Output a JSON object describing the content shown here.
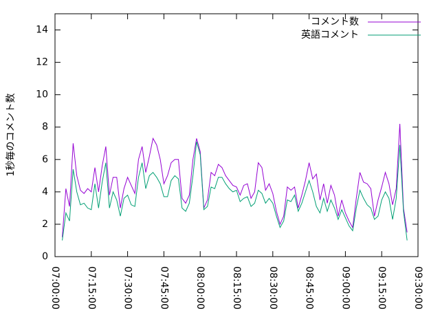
{
  "chart_data": {
    "type": "line",
    "ylabel": "1秒毎のコメント数",
    "x": [
      "07:03:00",
      "07:04:30",
      "07:06:00",
      "07:07:30",
      "07:09:00",
      "07:10:30",
      "07:12:00",
      "07:13:30",
      "07:15:00",
      "07:16:30",
      "07:18:00",
      "07:19:30",
      "07:21:00",
      "07:22:30",
      "07:24:00",
      "07:25:30",
      "07:27:00",
      "07:28:30",
      "07:30:00",
      "07:31:30",
      "07:33:00",
      "07:34:30",
      "07:36:00",
      "07:37:30",
      "07:39:00",
      "07:40:30",
      "07:42:00",
      "07:43:30",
      "07:45:00",
      "07:46:30",
      "07:48:00",
      "07:49:30",
      "07:51:00",
      "07:52:30",
      "07:54:00",
      "07:55:30",
      "07:57:00",
      "07:58:30",
      "08:00:00",
      "08:01:30",
      "08:03:00",
      "08:04:30",
      "08:06:00",
      "08:07:30",
      "08:09:00",
      "08:10:30",
      "08:12:00",
      "08:13:30",
      "08:15:00",
      "08:16:30",
      "08:18:00",
      "08:19:30",
      "08:21:00",
      "08:22:30",
      "08:24:00",
      "08:25:30",
      "08:27:00",
      "08:28:30",
      "08:30:00",
      "08:31:30",
      "08:33:00",
      "08:34:30",
      "08:36:00",
      "08:37:30",
      "08:39:00",
      "08:40:30",
      "08:42:00",
      "08:43:30",
      "08:45:00",
      "08:46:30",
      "08:48:00",
      "08:49:30",
      "08:51:00",
      "08:52:30",
      "08:54:00",
      "08:55:30",
      "08:57:00",
      "08:58:30",
      "09:00:00",
      "09:01:30",
      "09:03:00",
      "09:04:30",
      "09:06:00",
      "09:07:30",
      "09:09:00",
      "09:10:30",
      "09:12:00",
      "09:13:30",
      "09:15:00",
      "09:16:30",
      "09:18:00",
      "09:19:30",
      "09:21:00",
      "09:22:30",
      "09:24:00",
      "09:25:30"
    ],
    "series": [
      {
        "name": "コメント数",
        "color": "#9400d3",
        "values": [
          1.2,
          4.2,
          3.1,
          7.0,
          5.0,
          4.1,
          3.9,
          4.2,
          4.0,
          5.5,
          4.0,
          5.6,
          6.8,
          3.8,
          4.9,
          4.9,
          3.0,
          4.2,
          4.9,
          4.4,
          3.9,
          6.0,
          6.8,
          5.2,
          6.2,
          7.3,
          6.9,
          6.0,
          4.5,
          5.0,
          5.8,
          6.0,
          6.0,
          3.6,
          3.3,
          3.8,
          6.0,
          7.3,
          6.5,
          3.0,
          3.5,
          5.2,
          5.0,
          5.7,
          5.5,
          5.0,
          4.7,
          4.4,
          4.3,
          3.8,
          4.4,
          4.5,
          3.6,
          4.0,
          5.8,
          5.5,
          4.1,
          4.5,
          3.9,
          2.8,
          2.0,
          2.5,
          4.3,
          4.1,
          4.3,
          3.0,
          3.8,
          4.7,
          5.8,
          4.8,
          5.1,
          3.5,
          4.5,
          3.3,
          4.4,
          3.8,
          2.5,
          3.5,
          2.7,
          2.2,
          1.8,
          3.6,
          5.2,
          4.6,
          4.5,
          4.2,
          2.5,
          3.5,
          4.3,
          5.2,
          4.5,
          3.2,
          4.2,
          8.2,
          3.0,
          1.5
        ]
      },
      {
        "name": "英語コメント",
        "color": "#009e73",
        "values": [
          1.0,
          2.7,
          2.2,
          5.4,
          4.0,
          3.2,
          3.3,
          3.0,
          2.9,
          4.5,
          3.0,
          4.6,
          5.8,
          3.0,
          4.0,
          3.5,
          2.5,
          3.6,
          3.8,
          3.2,
          3.1,
          4.9,
          5.8,
          4.2,
          5.0,
          5.2,
          4.9,
          4.5,
          3.7,
          3.7,
          4.7,
          5.0,
          4.8,
          3.0,
          2.8,
          3.3,
          5.0,
          7.1,
          6.3,
          2.9,
          3.1,
          4.3,
          4.2,
          4.9,
          4.9,
          4.5,
          4.2,
          4.0,
          4.1,
          3.4,
          3.6,
          3.7,
          3.1,
          3.3,
          4.1,
          3.9,
          3.3,
          3.6,
          3.3,
          2.5,
          1.8,
          2.2,
          3.5,
          3.4,
          3.8,
          2.8,
          3.3,
          4.0,
          4.7,
          4.0,
          3.1,
          2.7,
          3.6,
          2.8,
          3.5,
          3.0,
          2.3,
          2.9,
          2.4,
          1.9,
          1.6,
          3.0,
          4.1,
          3.6,
          3.2,
          3.0,
          2.3,
          2.5,
          3.5,
          4.0,
          3.6,
          2.3,
          3.6,
          6.9,
          2.8,
          1.0
        ]
      }
    ],
    "xlim": [
      "07:00:00",
      "09:30:00"
    ],
    "xticks": [
      "07:00:00",
      "07:15:00",
      "07:30:00",
      "07:45:00",
      "08:00:00",
      "08:15:00",
      "08:30:00",
      "08:45:00",
      "09:00:00",
      "09:15:00",
      "09:30:00"
    ],
    "ylim": [
      0,
      15
    ],
    "yticks": [
      0,
      2,
      4,
      6,
      8,
      10,
      12,
      14
    ],
    "grid": false,
    "legend": "top-right"
  }
}
